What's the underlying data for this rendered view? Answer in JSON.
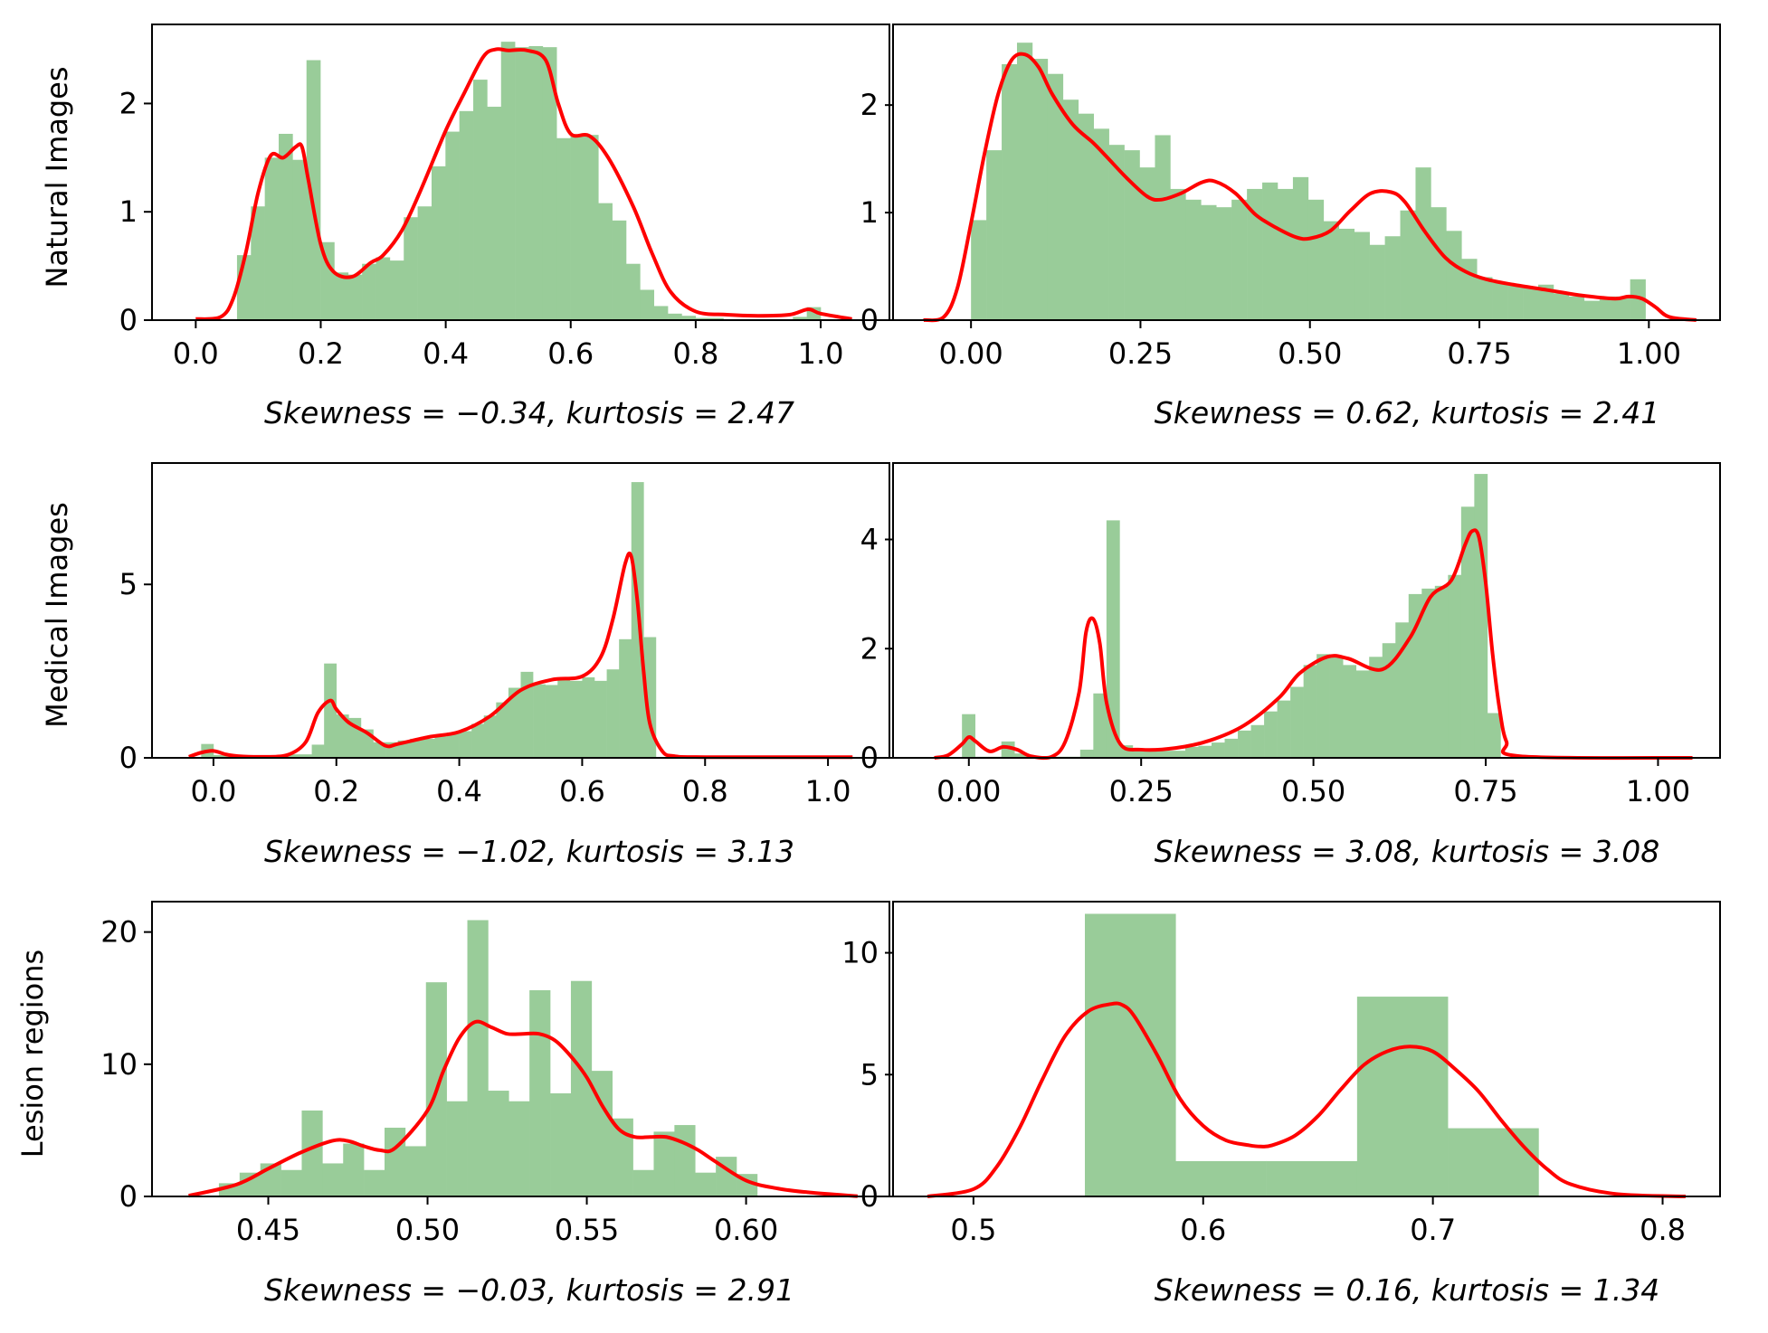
{
  "colors": {
    "hist": "#99cc99",
    "kde": "#ff0000",
    "axis": "#000000",
    "background": "#ffffff"
  },
  "row_labels": [
    "Natural Images",
    "Medical Images",
    "Lesion regions"
  ],
  "chart_data": [
    {
      "id": "natural-left",
      "type": "bar",
      "row": 0,
      "col": 0,
      "ylabel": "Natural Images",
      "caption": "Skewness = −0.34,  kurtosis = 2.47",
      "xlim": [
        -0.07,
        1.11
      ],
      "ylim": [
        0,
        2.73
      ],
      "xticks": [
        0.0,
        0.2,
        0.4,
        0.6,
        0.8,
        1.0
      ],
      "xtick_labels": [
        "0.0",
        "0.2",
        "0.4",
        "0.6",
        "0.8",
        "1.0"
      ],
      "yticks": [
        0,
        1,
        2
      ],
      "ytick_labels": [
        "0",
        "1",
        "2"
      ],
      "hist": {
        "x0": 0.066,
        "x1": 1.0,
        "heights": [
          0.6,
          1.05,
          1.5,
          1.72,
          1.48,
          2.4,
          0.72,
          0.44,
          0.42,
          0.52,
          0.58,
          0.55,
          0.95,
          1.05,
          1.42,
          1.74,
          1.93,
          2.22,
          1.97,
          2.57,
          2.52,
          2.53,
          2.52,
          1.68,
          1.7,
          1.71,
          1.08,
          0.92,
          0.52,
          0.28,
          0.13,
          0.06,
          0.04,
          0.02,
          0.02,
          0,
          0,
          0,
          0,
          0,
          0.03,
          0.12
        ]
      },
      "kde": {
        "x": [
          0.0,
          0.04,
          0.06,
          0.08,
          0.1,
          0.12,
          0.14,
          0.16,
          0.17,
          0.18,
          0.2,
          0.22,
          0.25,
          0.28,
          0.3,
          0.33,
          0.36,
          0.4,
          0.43,
          0.46,
          0.48,
          0.5,
          0.53,
          0.56,
          0.58,
          0.6,
          0.63,
          0.66,
          0.7,
          0.73,
          0.76,
          0.8,
          0.85,
          0.9,
          0.95,
          0.98,
          1.0,
          1.05
        ],
        "y": [
          0.01,
          0.03,
          0.2,
          0.62,
          1.18,
          1.52,
          1.5,
          1.6,
          1.6,
          1.3,
          0.7,
          0.45,
          0.4,
          0.53,
          0.6,
          0.83,
          1.2,
          1.75,
          2.1,
          2.43,
          2.5,
          2.49,
          2.49,
          2.4,
          2.0,
          1.72,
          1.7,
          1.5,
          1.05,
          0.62,
          0.26,
          0.08,
          0.05,
          0.04,
          0.05,
          0.1,
          0.06,
          0.01
        ]
      }
    },
    {
      "id": "natural-right",
      "type": "bar",
      "row": 0,
      "col": 1,
      "caption": "Skewness = 0.62,  kurtosis = 2.41",
      "xlim": [
        -0.115,
        1.105
      ],
      "ylim": [
        0,
        2.75
      ],
      "xticks": [
        0.0,
        0.25,
        0.5,
        0.75,
        1.0
      ],
      "xtick_labels": [
        "0.00",
        "0.25",
        "0.50",
        "0.75",
        "1.00"
      ],
      "yticks": [
        0,
        1,
        2
      ],
      "ytick_labels": [
        "0",
        "1",
        "2"
      ],
      "hist": {
        "x0": 0.0,
        "x1": 0.995,
        "heights": [
          0.93,
          1.58,
          2.38,
          2.58,
          2.43,
          2.29,
          2.05,
          1.92,
          1.78,
          1.63,
          1.58,
          1.42,
          1.72,
          1.22,
          1.12,
          1.07,
          1.05,
          1.12,
          1.22,
          1.28,
          1.22,
          1.33,
          1.12,
          0.92,
          0.85,
          0.82,
          0.7,
          0.78,
          1.02,
          1.42,
          1.05,
          0.83,
          0.57,
          0.4,
          0.35,
          0.33,
          0.3,
          0.33,
          0.25,
          0.22,
          0.18,
          0.22,
          0.22,
          0.38
        ]
      },
      "kde": {
        "x": [
          -0.07,
          -0.04,
          -0.02,
          0.0,
          0.02,
          0.04,
          0.06,
          0.08,
          0.1,
          0.12,
          0.15,
          0.18,
          0.2,
          0.23,
          0.26,
          0.28,
          0.31,
          0.34,
          0.36,
          0.39,
          0.42,
          0.45,
          0.48,
          0.5,
          0.53,
          0.56,
          0.59,
          0.62,
          0.64,
          0.67,
          0.7,
          0.73,
          0.76,
          0.8,
          0.85,
          0.9,
          0.95,
          0.97,
          0.99,
          1.01,
          1.03,
          1.07
        ],
        "y": [
          0.0,
          0.03,
          0.3,
          0.9,
          1.55,
          2.1,
          2.42,
          2.47,
          2.35,
          2.1,
          1.82,
          1.65,
          1.52,
          1.32,
          1.15,
          1.12,
          1.18,
          1.28,
          1.29,
          1.18,
          0.98,
          0.86,
          0.77,
          0.76,
          0.83,
          1.02,
          1.18,
          1.19,
          1.1,
          0.82,
          0.58,
          0.45,
          0.38,
          0.33,
          0.28,
          0.23,
          0.2,
          0.22,
          0.2,
          0.12,
          0.03,
          0.0
        ]
      }
    },
    {
      "id": "medical-left",
      "type": "bar",
      "row": 1,
      "col": 0,
      "ylabel": "Medical Images",
      "caption": "Skewness = −1.02,  kurtosis = 3.13",
      "xlim": [
        -0.1,
        1.1
      ],
      "ylim": [
        0,
        8.5
      ],
      "xticks": [
        0.0,
        0.2,
        0.4,
        0.6,
        0.8,
        1.0
      ],
      "xtick_labels": [
        "0.0",
        "0.2",
        "0.4",
        "0.6",
        "0.8",
        "1.0"
      ],
      "yticks": [
        0,
        5
      ],
      "ytick_labels": [
        "0",
        "5"
      ],
      "hist": {
        "x0": -0.02,
        "x1": 0.72,
        "heights": [
          0.4,
          0.08,
          0.05,
          0.05,
          0.05,
          0.05,
          0.05,
          0.1,
          0.1,
          0.38,
          2.72,
          1.25,
          1.15,
          0.82,
          0.45,
          0.45,
          0.5,
          0.55,
          0.55,
          0.62,
          0.73,
          0.77,
          0.98,
          1.22,
          1.6,
          2.02,
          2.48,
          2.12,
          2.1,
          2.31,
          2.22,
          2.32,
          2.22,
          2.55,
          3.42,
          7.95,
          3.48
        ]
      },
      "kde": {
        "x": [
          -0.04,
          -0.02,
          0.0,
          0.02,
          0.04,
          0.08,
          0.12,
          0.15,
          0.17,
          0.19,
          0.2,
          0.22,
          0.25,
          0.28,
          0.3,
          0.35,
          0.4,
          0.45,
          0.5,
          0.55,
          0.6,
          0.63,
          0.65,
          0.67,
          0.68,
          0.69,
          0.7,
          0.71,
          0.73,
          0.75,
          0.8,
          1.04
        ],
        "y": [
          0.03,
          0.15,
          0.2,
          0.1,
          0.05,
          0.03,
          0.08,
          0.45,
          1.3,
          1.65,
          1.4,
          1.02,
          0.72,
          0.35,
          0.4,
          0.6,
          0.75,
          1.2,
          1.95,
          2.25,
          2.35,
          2.9,
          4.0,
          5.6,
          5.8,
          4.5,
          2.5,
          1.0,
          0.2,
          0.05,
          0.02,
          0.02
        ]
      }
    },
    {
      "id": "medical-right",
      "type": "bar",
      "row": 1,
      "col": 1,
      "caption": "Skewness = 3.08,  kurtosis = 3.08",
      "xlim": [
        -0.11,
        1.09
      ],
      "ylim": [
        0,
        5.4
      ],
      "xticks": [
        0.0,
        0.25,
        0.5,
        0.75,
        1.0
      ],
      "xtick_labels": [
        "0.00",
        "0.25",
        "0.50",
        "0.75",
        "1.00"
      ],
      "yticks": [
        0,
        2,
        4
      ],
      "ytick_labels": [
        "0",
        "2",
        "4"
      ],
      "hist": {
        "x0": -0.01,
        "x1": 0.7715,
        "heights": [
          0.8,
          0.02,
          0.02,
          0.3,
          0.08,
          0.03,
          0.02,
          0.02,
          0.02,
          0.15,
          1.18,
          4.35,
          0.23,
          0.13,
          0.13,
          0.13,
          0.13,
          0.2,
          0.22,
          0.28,
          0.35,
          0.5,
          0.6,
          0.85,
          1.05,
          1.3,
          1.7,
          1.9,
          1.85,
          1.7,
          1.6,
          1.85,
          2.1,
          2.48,
          3.0,
          3.1,
          3.15,
          3.35,
          4.6,
          5.2,
          0.82
        ]
      },
      "kde": {
        "x": [
          -0.05,
          -0.03,
          -0.01,
          0.0,
          0.01,
          0.03,
          0.05,
          0.07,
          0.09,
          0.12,
          0.14,
          0.16,
          0.17,
          0.18,
          0.19,
          0.2,
          0.22,
          0.25,
          0.3,
          0.35,
          0.4,
          0.45,
          0.48,
          0.52,
          0.55,
          0.6,
          0.64,
          0.67,
          0.7,
          0.72,
          0.73,
          0.74,
          0.75,
          0.76,
          0.77,
          0.78,
          0.8,
          1.05
        ],
        "y": [
          0.0,
          0.05,
          0.25,
          0.38,
          0.3,
          0.12,
          0.2,
          0.15,
          0.03,
          0.02,
          0.3,
          1.2,
          2.3,
          2.55,
          2.1,
          1.0,
          0.25,
          0.15,
          0.18,
          0.32,
          0.6,
          1.1,
          1.55,
          1.85,
          1.82,
          1.62,
          2.2,
          2.95,
          3.25,
          3.9,
          4.15,
          4.05,
          3.2,
          1.9,
          0.9,
          0.3,
          0.03,
          0.0
        ]
      }
    },
    {
      "id": "lesion-left",
      "type": "bar",
      "row": 2,
      "col": 0,
      "ylabel": "Lesion regions",
      "caption": "Skewness = −0.03,  kurtosis = 2.91",
      "xlim": [
        0.4135,
        0.645
      ],
      "ylim": [
        0,
        22.3
      ],
      "xticks": [
        0.45,
        0.5,
        0.55,
        0.6
      ],
      "xtick_labels": [
        "0.45",
        "0.50",
        "0.55",
        "0.60"
      ],
      "yticks": [
        0,
        10,
        20
      ],
      "ytick_labels": [
        "0",
        "10",
        "20"
      ],
      "hist": {
        "x0": 0.4345,
        "x1": 0.6035,
        "heights": [
          1.0,
          1.8,
          2.5,
          2.0,
          6.5,
          2.5,
          4.0,
          2.0,
          5.2,
          3.8,
          16.2,
          7.2,
          20.9,
          8.0,
          7.2,
          15.6,
          7.8,
          16.3,
          9.5,
          5.9,
          2.0,
          4.9,
          5.4,
          1.8,
          3.0,
          1.7
        ]
      },
      "kde": {
        "x": [
          0.425,
          0.44,
          0.45,
          0.46,
          0.47,
          0.475,
          0.48,
          0.485,
          0.49,
          0.5,
          0.505,
          0.51,
          0.515,
          0.52,
          0.525,
          0.53,
          0.535,
          0.54,
          0.545,
          0.55,
          0.555,
          0.56,
          0.565,
          0.57,
          0.575,
          0.58,
          0.585,
          0.59,
          0.6,
          0.61,
          0.62,
          0.635
        ],
        "y": [
          0.05,
          0.9,
          2.1,
          3.3,
          4.2,
          4.2,
          3.8,
          3.5,
          3.7,
          6.5,
          9.5,
          12.0,
          13.2,
          12.8,
          12.3,
          12.3,
          12.3,
          11.8,
          10.6,
          9.0,
          6.8,
          5.1,
          4.5,
          4.5,
          4.5,
          4.1,
          3.5,
          2.7,
          1.2,
          0.6,
          0.3,
          0.02
        ]
      }
    },
    {
      "id": "lesion-right",
      "type": "bar",
      "row": 2,
      "col": 1,
      "caption": "Skewness = 0.16,  kurtosis = 1.34",
      "xlim": [
        0.465,
        0.825
      ],
      "ylim": [
        0,
        12.1
      ],
      "xticks": [
        0.5,
        0.6,
        0.7,
        0.8
      ],
      "xtick_labels": [
        "0.5",
        "0.6",
        "0.7",
        "0.8"
      ],
      "yticks": [
        0,
        5,
        10
      ],
      "ytick_labels": [
        "0",
        "5",
        "10"
      ],
      "hist": {
        "edges": [
          0.5485,
          0.588,
          0.6275,
          0.667,
          0.7065,
          0.746
        ],
        "heights": [
          11.6,
          1.45,
          1.45,
          8.2,
          2.8
        ]
      },
      "kde": {
        "x": [
          0.48,
          0.5,
          0.51,
          0.52,
          0.53,
          0.54,
          0.55,
          0.56,
          0.565,
          0.57,
          0.58,
          0.59,
          0.6,
          0.61,
          0.62,
          0.625,
          0.63,
          0.64,
          0.65,
          0.66,
          0.67,
          0.68,
          0.69,
          0.7,
          0.71,
          0.72,
          0.73,
          0.74,
          0.75,
          0.76,
          0.78,
          0.81
        ],
        "y": [
          0.0,
          0.3,
          1.2,
          2.8,
          4.8,
          6.6,
          7.6,
          7.9,
          7.85,
          7.4,
          5.8,
          4.0,
          2.9,
          2.3,
          2.1,
          2.05,
          2.1,
          2.5,
          3.3,
          4.4,
          5.4,
          5.95,
          6.15,
          5.95,
          5.2,
          4.3,
          3.1,
          2.0,
          1.1,
          0.5,
          0.1,
          0.0
        ]
      }
    }
  ]
}
